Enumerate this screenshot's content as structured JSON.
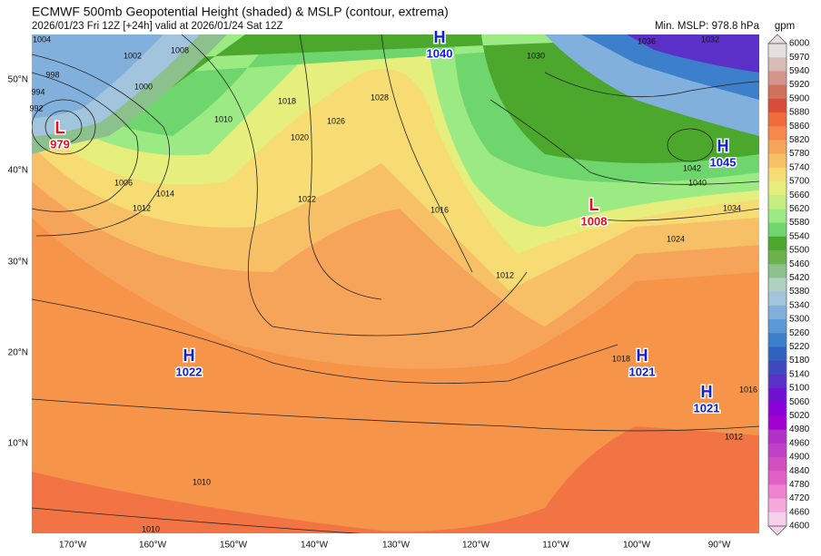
{
  "header": {
    "title": "ECMWF 500mb Geopotential Height (shaded) & MSLP (contour, extrema)",
    "subtitle": "2026/01/23 Fri 12Z [+24h] valid at 2026/01/24 Sat 12Z",
    "min_mslp": "Min. MSLP: 978.8 hPa"
  },
  "colorbar": {
    "unit": "gpm",
    "levels": [
      "6000",
      "5970",
      "5940",
      "5920",
      "5900",
      "5880",
      "5860",
      "5820",
      "5780",
      "5740",
      "5700",
      "5660",
      "5620",
      "5580",
      "5540",
      "5500",
      "5460",
      "5420",
      "5380",
      "5340",
      "5300",
      "5260",
      "5220",
      "5180",
      "5140",
      "5100",
      "5060",
      "5020",
      "4980",
      "4960",
      "4900",
      "4840",
      "4780",
      "4720",
      "4660",
      "4600"
    ],
    "colors": [
      "#e4e0e0",
      "#d8bcb8",
      "#d4968c",
      "#d2705e",
      "#d64e3a",
      "#f06a3c",
      "#f5884a",
      "#f6a45a",
      "#f8c066",
      "#f6dc72",
      "#e6ee7c",
      "#c4ee80",
      "#9cea84",
      "#6ed66c",
      "#4ca82c",
      "#6cb24c",
      "#8cc08c",
      "#b0d0c0",
      "#a2c4dc",
      "#82b0dc",
      "#5a98d8",
      "#3c80cc",
      "#3062c0",
      "#4048c0",
      "#5a30c8",
      "#7010d0",
      "#8c00d8",
      "#a000d0",
      "#b030c8",
      "#c040c8",
      "#d050c0",
      "#e060c8",
      "#f080d0",
      "#f4a8dc",
      "#f8d0ec"
    ]
  },
  "latitude_labels": [
    "50°N",
    "40°N",
    "30°N",
    "20°N",
    "10°N"
  ],
  "longitude_labels": [
    "170°W",
    "160°W",
    "150°W",
    "140°W",
    "130°W",
    "120°W",
    "110°W",
    "100°W",
    "90°W"
  ],
  "pressure_centers": [
    {
      "type": "L",
      "value": "979"
    },
    {
      "type": "H",
      "value": "1040"
    },
    {
      "type": "H",
      "value": "1045"
    },
    {
      "type": "L",
      "value": "1008"
    },
    {
      "type": "H",
      "value": "1022"
    },
    {
      "type": "H",
      "value": "1021"
    },
    {
      "type": "H",
      "value": "1021"
    }
  ],
  "contour_labels": [
    "1004",
    "998",
    "994",
    "992",
    "1002",
    "1000",
    "1008",
    "1010",
    "1006",
    "1014",
    "1012",
    "1018",
    "1020",
    "1022",
    "1026",
    "1028",
    "1016",
    "1036",
    "1032",
    "1030",
    "1042",
    "1040",
    "1034",
    "1024",
    "1012",
    "1018",
    "1016",
    "1012",
    "1010",
    "1010"
  ]
}
